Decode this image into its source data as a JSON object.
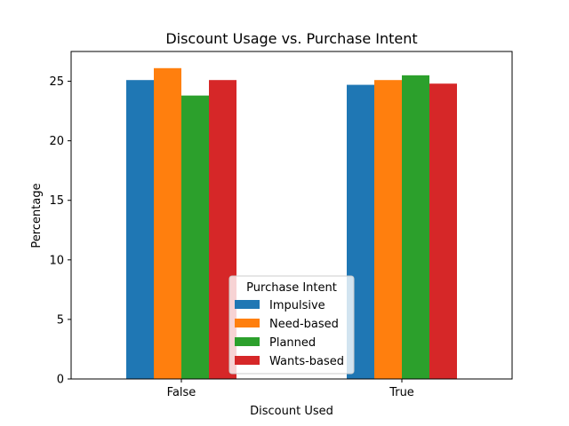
{
  "chart_data": {
    "type": "bar",
    "title": "Discount Usage vs. Purchase Intent",
    "xlabel": "Discount Used",
    "ylabel": "Percentage",
    "categories": [
      "False",
      "True"
    ],
    "ylim": [
      0,
      27.5
    ],
    "yticks": [
      0,
      5,
      10,
      15,
      20,
      25
    ],
    "grid": false,
    "legend": {
      "title": "Purchase Intent",
      "placement": "lower center"
    },
    "series": [
      {
        "name": "Impulsive",
        "color": "#1f77b4",
        "values": [
          25.1,
          24.7
        ]
      },
      {
        "name": "Need-based",
        "color": "#ff7f0e",
        "values": [
          26.1,
          25.1
        ]
      },
      {
        "name": "Planned",
        "color": "#2ca02c",
        "values": [
          23.8,
          25.5
        ]
      },
      {
        "name": "Wants-based",
        "color": "#d62728",
        "values": [
          25.1,
          24.8
        ]
      }
    ]
  }
}
